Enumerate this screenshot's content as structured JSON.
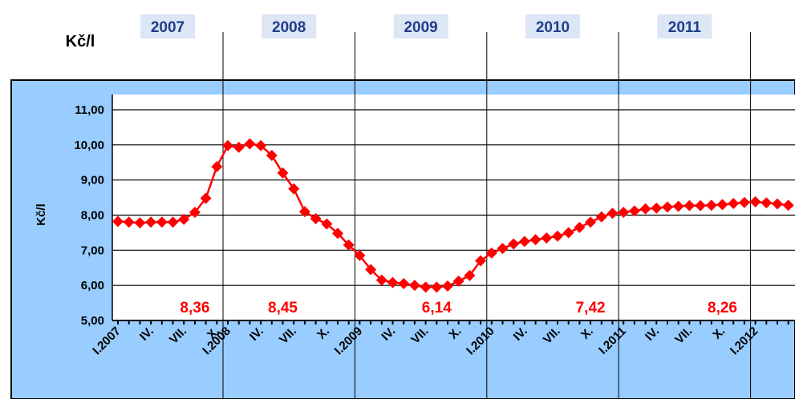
{
  "chart_data": {
    "type": "line",
    "unit_label": "Kč/l",
    "y_label": "Kč/l",
    "years": [
      "2007",
      "2008",
      "2009",
      "2010",
      "2011"
    ],
    "categories": [
      "I.2007",
      null,
      null,
      "IV.",
      null,
      null,
      "VII.",
      null,
      null,
      "X.",
      "I.2008",
      null,
      null,
      "IV.",
      null,
      null,
      "VII.",
      null,
      null,
      "X.",
      null,
      null,
      "I.2009",
      null,
      null,
      "IV.",
      null,
      null,
      "VII.",
      null,
      null,
      "X.",
      null,
      null,
      "I.2010",
      null,
      null,
      "IV.",
      null,
      null,
      "VII.",
      null,
      null,
      "X.",
      null,
      null,
      "I.2011",
      null,
      null,
      "IV.",
      null,
      null,
      "VII.",
      null,
      null,
      "X.",
      null,
      null,
      "I.2012",
      null,
      null,
      null
    ],
    "series": [
      {
        "name": "Kč/l",
        "color": "#ff0000",
        "values": [
          7.82,
          7.8,
          7.78,
          7.8,
          7.8,
          7.8,
          7.88,
          8.08,
          8.48,
          9.38,
          9.98,
          9.93,
          10.03,
          9.98,
          9.7,
          9.2,
          8.75,
          8.1,
          7.9,
          7.75,
          7.48,
          7.15,
          6.85,
          6.45,
          6.15,
          6.08,
          6.05,
          6.0,
          5.95,
          5.95,
          5.98,
          6.12,
          6.28,
          6.7,
          6.92,
          7.05,
          7.18,
          7.25,
          7.3,
          7.35,
          7.4,
          7.5,
          7.65,
          7.8,
          7.95,
          8.05,
          8.08,
          8.12,
          8.18,
          8.2,
          8.23,
          8.25,
          8.27,
          8.27,
          8.28,
          8.3,
          8.33,
          8.36,
          8.38,
          8.35,
          8.32,
          8.28
        ]
      }
    ],
    "annotations": [
      {
        "text": "8,36",
        "index": 7
      },
      {
        "text": "8,45",
        "index": 15
      },
      {
        "text": "6,14",
        "index": 29
      },
      {
        "text": "7,42",
        "index": 43
      },
      {
        "text": "8,26",
        "index": 55
      }
    ],
    "ylim": [
      5,
      11
    ],
    "yticks": [
      {
        "value": 5,
        "label": "5,00"
      },
      {
        "value": 6,
        "label": "6,00"
      },
      {
        "value": 7,
        "label": "7,00"
      },
      {
        "value": 8,
        "label": "8,00"
      },
      {
        "value": 9,
        "label": "9,00"
      },
      {
        "value": 10,
        "label": "10,00"
      },
      {
        "value": 11,
        "label": "11,00"
      }
    ],
    "grid": true
  }
}
